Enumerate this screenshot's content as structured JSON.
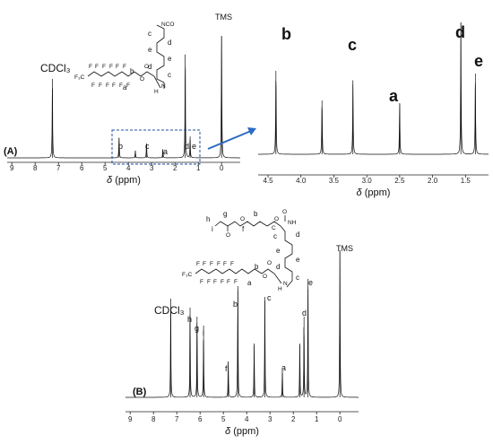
{
  "chart_data": [
    {
      "id": "A",
      "type": "line",
      "panel_label": "(A)",
      "xlabel_symbol": "δ",
      "xlabel_unit": " (ppm)",
      "x_reversed": true,
      "xlim": [
        9.2,
        -0.8
      ],
      "tick_labels": [
        "9",
        "8",
        "7",
        "6",
        "5",
        "4",
        "3",
        "2",
        "1",
        "0"
      ],
      "peaks": [
        {
          "label": "CDCl₃",
          "x": 7.26,
          "height": 0.55
        },
        {
          "label": "b",
          "x": 4.4,
          "height": 0.14
        },
        {
          "label": "",
          "x": 3.7,
          "height": 0.05
        },
        {
          "label": "c",
          "x": 3.22,
          "height": 0.1
        },
        {
          "label": "a",
          "x": 2.52,
          "height": 0.06
        },
        {
          "label": "d",
          "x": 1.56,
          "height": 0.72
        },
        {
          "label": "e",
          "x": 1.35,
          "height": 0.15
        },
        {
          "label": "TMS",
          "x": 0.0,
          "height": 0.85
        }
      ]
    },
    {
      "id": "A-zoom",
      "type": "line",
      "xlabel_symbol": "δ",
      "xlabel_unit": " (ppm)",
      "x_reversed": true,
      "xlim": [
        4.65,
        1.15
      ],
      "tick_labels": [
        "4.5",
        "4.0",
        "3.5",
        "3.0",
        "2.5",
        "2.0",
        "1.5"
      ],
      "peaks": [
        {
          "label": "b",
          "x": 4.38,
          "height": 0.62
        },
        {
          "label": "",
          "x": 3.68,
          "height": 0.4
        },
        {
          "label": "c",
          "x": 3.21,
          "height": 0.55
        },
        {
          "label": "a",
          "x": 2.5,
          "height": 0.38
        },
        {
          "label": "d",
          "x": 1.57,
          "height": 0.98
        },
        {
          "label": "e",
          "x": 1.35,
          "height": 0.6
        }
      ]
    },
    {
      "id": "B",
      "type": "line",
      "panel_label": "(B)",
      "xlabel_symbol": "δ",
      "xlabel_unit": " (ppm)",
      "x_reversed": true,
      "xlim": [
        9.2,
        -0.8
      ],
      "tick_labels": [
        "9",
        "8",
        "7",
        "6",
        "5",
        "4",
        "3",
        "2",
        "1",
        "0"
      ],
      "peaks": [
        {
          "label": "CDCl₃",
          "x": 7.26,
          "height": 0.55
        },
        {
          "label": "h",
          "x": 6.43,
          "height": 0.5
        },
        {
          "label": "g",
          "x": 6.13,
          "height": 0.45
        },
        {
          "label": "i",
          "x": 5.85,
          "height": 0.4
        },
        {
          "label": "f",
          "x": 4.79,
          "height": 0.2
        },
        {
          "label": "b",
          "x": 4.38,
          "height": 0.62
        },
        {
          "label": "",
          "x": 3.68,
          "height": 0.3
        },
        {
          "label": "c",
          "x": 3.22,
          "height": 0.56
        },
        {
          "label": "a",
          "x": 2.47,
          "height": 0.15
        },
        {
          "label": "",
          "x": 1.72,
          "height": 0.3
        },
        {
          "label": "d",
          "x": 1.54,
          "height": 0.45
        },
        {
          "label": "e",
          "x": 1.37,
          "height": 0.66
        },
        {
          "label": "TMS",
          "x": 0.0,
          "height": 0.82
        }
      ]
    }
  ],
  "structures": {
    "iso_label": "NCO",
    "nh_label": "N",
    "h_label": "H",
    "o_label": "O",
    "f_label": "F",
    "f3c_label": "F₃C",
    "nh_b_label": "NH",
    "c_label": "C",
    "letters_a": [
      "c",
      "d",
      "e",
      "e",
      "d",
      "c",
      "b",
      "a"
    ],
    "letters_b": [
      "h",
      "g",
      "i",
      "f",
      "b",
      "c",
      "d",
      "e",
      "e",
      "d",
      "c",
      "b",
      "a"
    ]
  }
}
